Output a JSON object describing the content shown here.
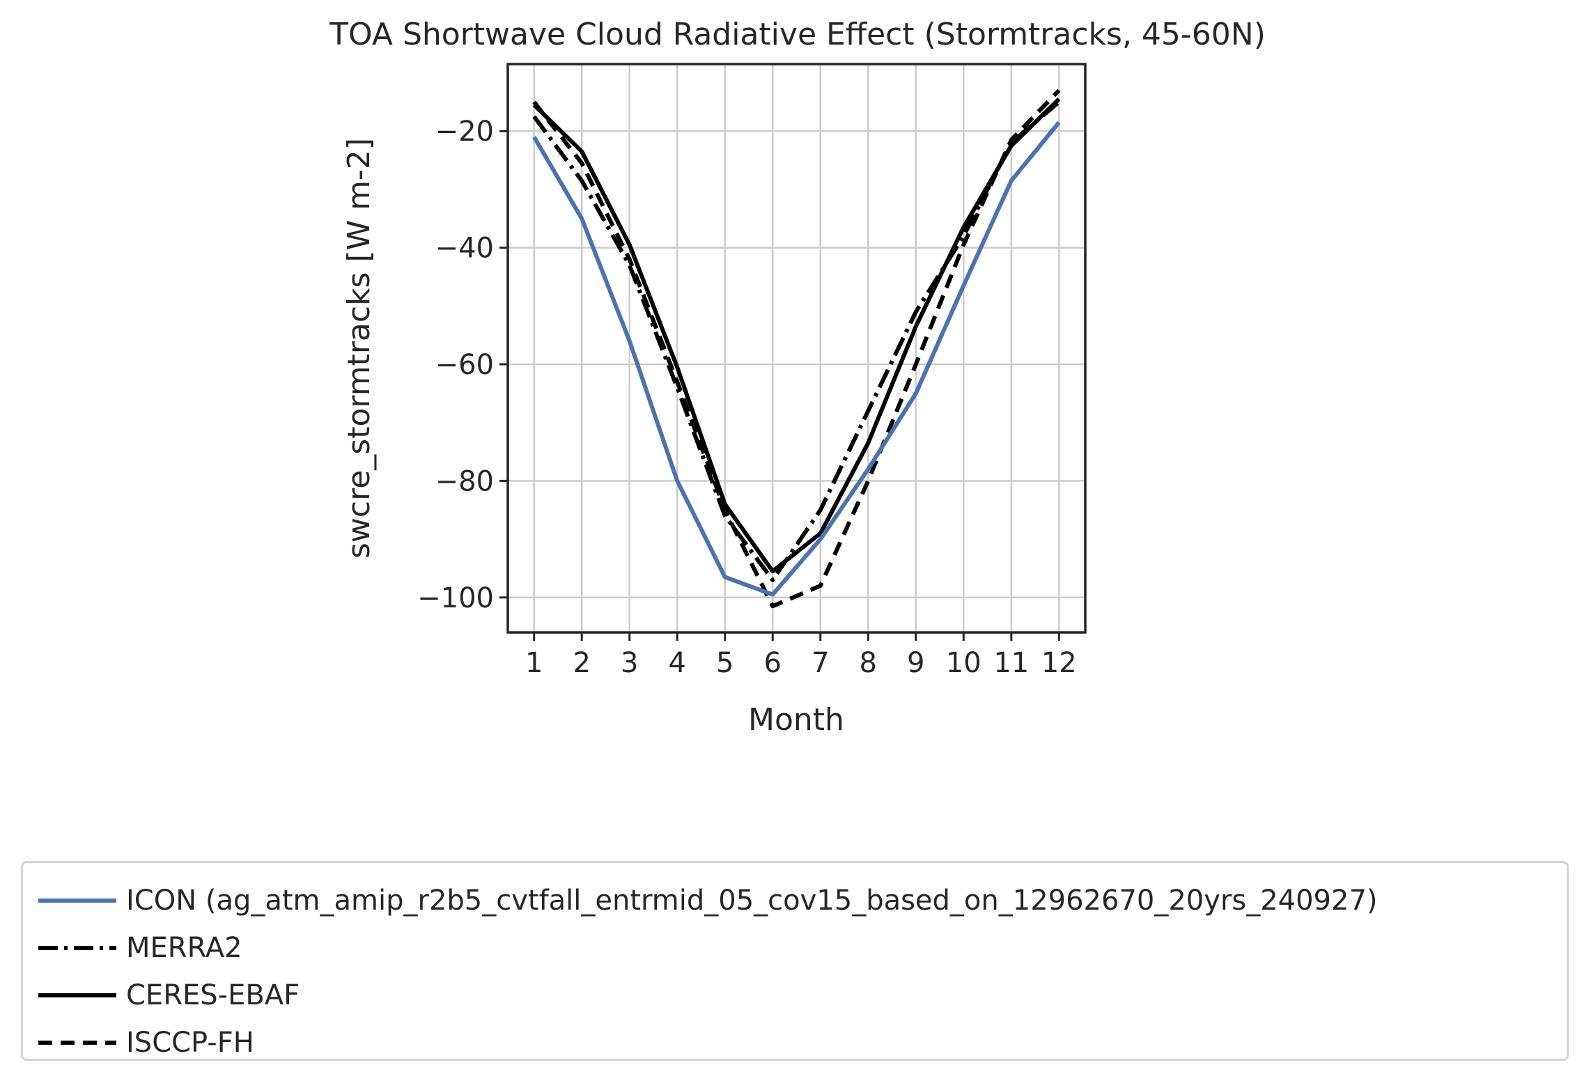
{
  "chart_data": {
    "type": "line",
    "title": "TOA Shortwave Cloud Radiative Effect (Stormtracks, 45-60N)",
    "xlabel": "Month",
    "ylabel": "swcre_stormtracks [W m-2]",
    "x": [
      1,
      2,
      3,
      4,
      5,
      6,
      7,
      8,
      9,
      10,
      11,
      12
    ],
    "xlim": [
      0.45,
      12.55
    ],
    "ylim": [
      -106,
      -8.5
    ],
    "yticks": [
      -20,
      -40,
      -60,
      -80,
      -100
    ],
    "ytick_labels": [
      "−20",
      "−40",
      "−60",
      "−80",
      "−100"
    ],
    "grid": true,
    "legend_position": "below",
    "series": [
      {
        "name": "ICON (ag_atm_amip_r2b5_cvtfall_entrmid_05_cov15_based_on_12962670_20yrs_240927)",
        "style": "solid",
        "color": "#4c72b0",
        "values": [
          -21,
          -35,
          -56,
          -80,
          -96.5,
          -99.5,
          -90,
          -78,
          -65,
          -46.5,
          -28.5,
          -18.5
        ]
      },
      {
        "name": "MERRA2",
        "style": "dashdot",
        "color": "#000000",
        "values": [
          -17.5,
          -28.5,
          -43,
          -64,
          -86,
          -97,
          -85,
          -68,
          -51,
          -38,
          -22,
          -15
        ]
      },
      {
        "name": "CERES-EBAF",
        "style": "solid",
        "color": "#000000",
        "values": [
          -15.5,
          -23.5,
          -39.5,
          -60.5,
          -84,
          -95.5,
          -89,
          -73.5,
          -53.5,
          -36.5,
          -22.5,
          -14.5
        ]
      },
      {
        "name": "ISCCP-FH",
        "style": "dashed",
        "color": "#000000",
        "values": [
          -15,
          -25.5,
          -42,
          -63,
          -85,
          -101.5,
          -98,
          -80,
          -60,
          -39.5,
          -21.5,
          -13
        ]
      }
    ]
  }
}
